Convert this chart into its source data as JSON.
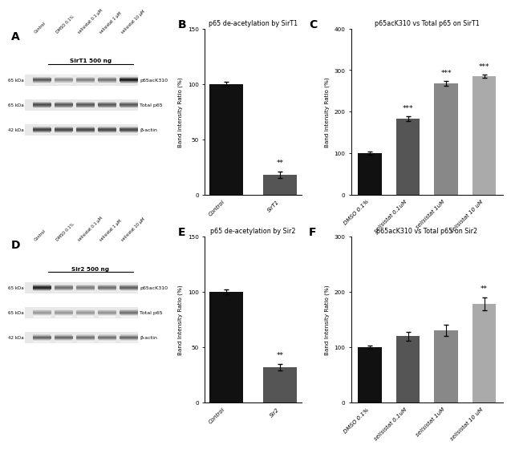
{
  "panel_B": {
    "title": "p65 de-acetylation by SirT1",
    "categories": [
      "Control",
      "SirT1"
    ],
    "values": [
      100,
      18
    ],
    "errors": [
      2,
      3
    ],
    "colors": [
      "#111111",
      "#555555"
    ],
    "ylabel": "Band Intensity Ratio (%)",
    "ylim": [
      0,
      150
    ],
    "yticks": [
      0,
      50,
      100,
      150
    ],
    "sig": [
      "",
      "**"
    ]
  },
  "panel_C": {
    "title": "p65acK310 vs Total p65 on SirT1",
    "categories": [
      "DMSO 0.1%",
      "selisistat 0.1uM",
      "selisistat 1uM",
      "selisistat 10 uM"
    ],
    "values": [
      100,
      183,
      268,
      285
    ],
    "errors": [
      3,
      5,
      5,
      4
    ],
    "colors": [
      "#111111",
      "#555555",
      "#888888",
      "#aaaaaa"
    ],
    "ylabel": "Band Intensity Ratio (%)",
    "ylim": [
      0,
      400
    ],
    "yticks": [
      0,
      100,
      200,
      300,
      400
    ],
    "sig": [
      "",
      "***",
      "***",
      "***"
    ]
  },
  "panel_E": {
    "title": "p65 de-acetylation by Sir2",
    "categories": [
      "Control",
      "Sir2"
    ],
    "values": [
      100,
      32
    ],
    "errors": [
      2,
      3
    ],
    "colors": [
      "#111111",
      "#555555"
    ],
    "ylabel": "Band Intensity Ratio (%)",
    "ylim": [
      0,
      150
    ],
    "yticks": [
      0,
      50,
      100,
      150
    ],
    "sig": [
      "",
      "**"
    ]
  },
  "panel_F": {
    "title": "p65acK310 vs Total p65 on Sir2",
    "categories": [
      "DMSO 0.1%",
      "selisistat 0.1uM",
      "selisistat 1uM",
      "selisistat 10 uM"
    ],
    "values": [
      100,
      120,
      130,
      178
    ],
    "errors": [
      3,
      8,
      10,
      12
    ],
    "colors": [
      "#111111",
      "#555555",
      "#888888",
      "#aaaaaa"
    ],
    "ylabel": "Band Intensity Ratio (%)",
    "ylim": [
      0,
      300
    ],
    "yticks": [
      0,
      100,
      200,
      300
    ],
    "sig": [
      "",
      "",
      "",
      "**"
    ]
  },
  "panel_A": {
    "label": "A",
    "blot_labels_left": [
      "65 kDa",
      "65 kDa",
      "42 kDa"
    ],
    "blot_labels_right": [
      "p65acK310",
      "Total p65",
      "β-actin"
    ],
    "header": "SirT1 500 ng",
    "col_labels": [
      "Control",
      "DMSO 0.1%",
      "selisistat 0.1 μM",
      "selisistat 1 μM",
      "selisistat 10 μM"
    ],
    "band_intensities": [
      [
        0.65,
        0.45,
        0.5,
        0.55,
        0.9
      ],
      [
        0.7,
        0.65,
        0.65,
        0.65,
        0.65
      ],
      [
        0.72,
        0.7,
        0.7,
        0.7,
        0.7
      ]
    ]
  },
  "panel_D": {
    "label": "D",
    "blot_labels_left": [
      "65 kDa",
      "65 kDa",
      "42 kDa"
    ],
    "blot_labels_right": [
      "p65acK310",
      "Total p65",
      "β-actin"
    ],
    "header": "Sir2 500 ng",
    "col_labels": [
      "Control",
      "DMSO 0.1%",
      "selisistat 0.1 μM",
      "selisistat 1 μM",
      "selisistat 10 μM"
    ],
    "band_intensities": [
      [
        0.85,
        0.55,
        0.5,
        0.55,
        0.6
      ],
      [
        0.4,
        0.4,
        0.4,
        0.42,
        0.55
      ],
      [
        0.6,
        0.58,
        0.55,
        0.55,
        0.58
      ]
    ]
  }
}
